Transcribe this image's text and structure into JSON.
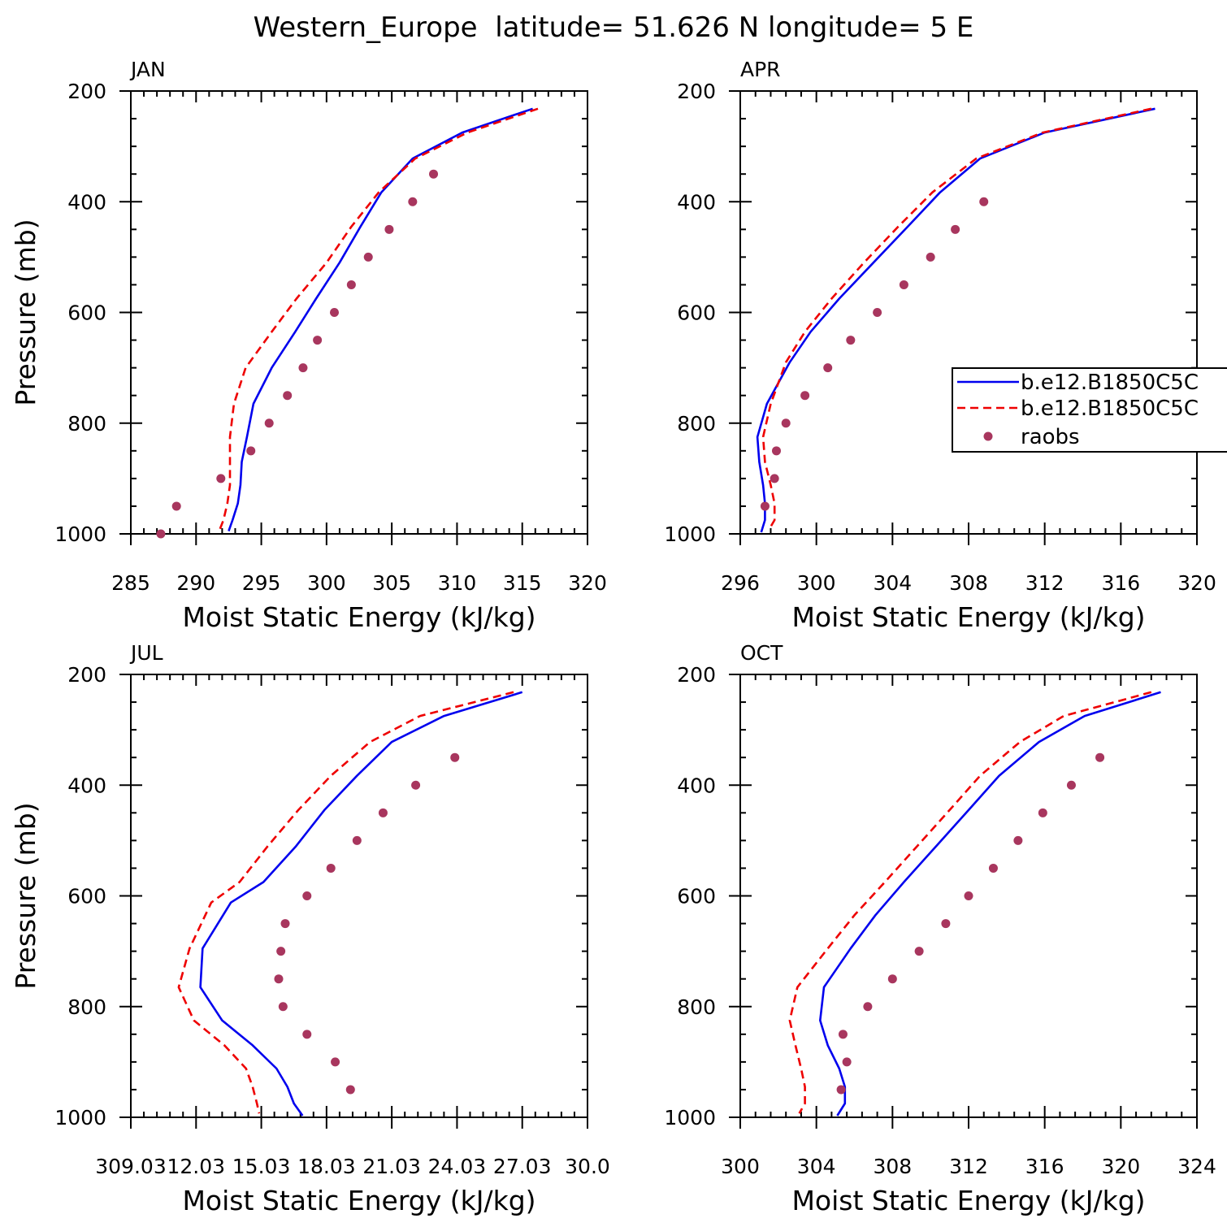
{
  "figure_title": "Western_Europe  latitude= 51.626 N longitude= 5 E",
  "colors": {
    "model1": "#0000ee",
    "model2": "#ee0000",
    "obs": "#a8365e"
  },
  "legend": {
    "entries": [
      {
        "label": "b.e12.B1850C5C",
        "style": "solid",
        "color": "#0000ee"
      },
      {
        "label": "b.e12.B1850C5C",
        "style": "dashed",
        "color": "#ee0000"
      },
      {
        "label": "raobs",
        "style": "dot",
        "color": "#a8365e"
      }
    ]
  },
  "chart_data": [
    {
      "type": "line",
      "panel_label": "JAN",
      "xlabel": "Moist Static Energy (kJ/kg)",
      "ylabel": "Pressure (mb)",
      "xlim": [
        285,
        320
      ],
      "ylim": [
        1000,
        200
      ],
      "xticks": [
        285,
        290,
        295,
        300,
        305,
        310,
        315,
        320
      ],
      "xtick_labels": [
        "285",
        "290",
        "295",
        "300",
        "305",
        "310",
        "315",
        "320"
      ],
      "yticks": [
        200,
        400,
        600,
        800,
        1000
      ],
      "ytick_labels": [
        "200",
        "400",
        "600",
        "800",
        "1000"
      ],
      "series": [
        {
          "name": "b.e12.B1850C5C (solid)",
          "style": "solid",
          "x": [
            315.8,
            310.4,
            306.6,
            304.2,
            302.6,
            301.0,
            299.2,
            297.6,
            295.8,
            294.4,
            293.9,
            293.5,
            293.4,
            293.2,
            292.8,
            292.5
          ],
          "y": [
            232,
            275,
            322,
            383,
            445,
            510,
            575,
            635,
            700,
            765,
            825,
            870,
            912,
            945,
            975,
            995
          ]
        },
        {
          "name": "b.e12.B1850C5C (dashed)",
          "style": "dashed",
          "x": [
            316.2,
            310.8,
            306.8,
            304.0,
            301.9,
            300.0,
            297.7,
            295.8,
            293.8,
            292.9,
            292.6,
            292.6,
            292.6,
            292.4,
            292.1,
            291.8
          ],
          "y": [
            232,
            275,
            322,
            383,
            445,
            510,
            575,
            635,
            700,
            765,
            825,
            870,
            912,
            945,
            975,
            993
          ]
        },
        {
          "name": "raobs",
          "style": "dot",
          "x": [
            308.2,
            306.6,
            304.8,
            303.2,
            301.9,
            300.6,
            299.3,
            298.2,
            297.0,
            295.6,
            294.2,
            291.9,
            288.5,
            287.3
          ],
          "y": [
            350,
            400,
            450,
            500,
            550,
            600,
            650,
            700,
            750,
            800,
            850,
            900,
            950,
            1000
          ]
        }
      ]
    },
    {
      "type": "line",
      "panel_label": "APR",
      "xlabel": "Moist Static Energy (kJ/kg)",
      "ylabel": "",
      "xlim": [
        296,
        320
      ],
      "ylim": [
        1000,
        200
      ],
      "xticks": [
        296,
        300,
        304,
        308,
        312,
        316,
        320
      ],
      "xtick_labels": [
        "296",
        "300",
        "304",
        "308",
        "312",
        "316",
        "320"
      ],
      "yticks": [
        200,
        400,
        600,
        800,
        1000
      ],
      "ytick_labels": [
        "200",
        "400",
        "600",
        "800",
        "1000"
      ],
      "series": [
        {
          "name": "b.e12.B1850C5C (solid)",
          "style": "solid",
          "x": [
            317.8,
            312.0,
            308.6,
            306.5,
            304.8,
            303.0,
            301.2,
            299.7,
            298.6,
            297.4,
            296.9,
            297.0,
            297.2,
            297.3,
            297.3,
            297.1
          ],
          "y": [
            232,
            275,
            322,
            383,
            445,
            510,
            575,
            635,
            690,
            765,
            825,
            870,
            912,
            945,
            975,
            997
          ]
        },
        {
          "name": "b.e12.B1850C5C (dashed)",
          "style": "dashed",
          "x": [
            317.6,
            311.9,
            308.4,
            306.1,
            304.3,
            302.5,
            300.8,
            299.4,
            298.4,
            297.6,
            297.2,
            297.3,
            297.6,
            297.8,
            297.8,
            297.5
          ],
          "y": [
            232,
            275,
            322,
            383,
            445,
            510,
            575,
            635,
            690,
            765,
            825,
            870,
            912,
            945,
            975,
            993
          ]
        },
        {
          "name": "raobs",
          "style": "dot",
          "x": [
            308.8,
            307.3,
            306.0,
            304.6,
            303.2,
            301.8,
            300.6,
            299.4,
            298.4,
            297.9,
            297.8,
            297.3
          ],
          "y": [
            400,
            450,
            500,
            550,
            600,
            650,
            700,
            750,
            800,
            850,
            900,
            950
          ]
        }
      ]
    },
    {
      "type": "line",
      "panel_label": "JUL",
      "xlabel": "Moist Static Energy (kJ/kg)",
      "ylabel": "Pressure (mb)",
      "xlim": [
        309.0,
        330.0
      ],
      "ylim": [
        1000,
        200
      ],
      "xticks": [
        309.0,
        312.0,
        315.0,
        318.0,
        321.0,
        324.0,
        327.0,
        330.0
      ],
      "xtick_labels": [
        "309.03",
        "12.03",
        "15.03",
        "18.03",
        "21.03",
        "24.03",
        "27.03",
        "30.0"
      ],
      "yticks": [
        200,
        400,
        600,
        800,
        1000
      ],
      "ytick_labels": [
        "200",
        "400",
        "600",
        "800",
        "1000"
      ],
      "series": [
        {
          "name": "b.e12.B1850C5C (solid)",
          "style": "solid",
          "x": [
            327.0,
            323.4,
            321.0,
            319.4,
            317.9,
            316.6,
            315.1,
            313.6,
            312.3,
            312.2,
            313.2,
            314.6,
            315.7,
            316.2,
            316.5,
            316.9
          ],
          "y": [
            232,
            275,
            322,
            383,
            445,
            510,
            575,
            612,
            695,
            765,
            825,
            870,
            912,
            945,
            975,
            997
          ]
        },
        {
          "name": "b.e12.B1850C5C (dashed)",
          "style": "dashed",
          "x": [
            326.6,
            322.3,
            320.0,
            318.2,
            316.7,
            315.3,
            314.0,
            312.7,
            311.7,
            311.2,
            311.9,
            313.3,
            314.3,
            314.6,
            314.8,
            314.9
          ],
          "y": [
            232,
            275,
            322,
            383,
            445,
            510,
            575,
            612,
            695,
            765,
            825,
            870,
            912,
            945,
            975,
            993
          ]
        },
        {
          "name": "raobs",
          "style": "dot",
          "x": [
            323.9,
            322.1,
            320.6,
            319.4,
            318.2,
            317.1,
            316.1,
            315.9,
            315.8,
            316.0,
            317.1,
            318.4,
            319.1
          ],
          "y": [
            350,
            400,
            450,
            500,
            550,
            600,
            650,
            700,
            750,
            800,
            850,
            900,
            950
          ]
        }
      ]
    },
    {
      "type": "line",
      "panel_label": "OCT",
      "xlabel": "Moist Static Energy (kJ/kg)",
      "ylabel": "",
      "xlim": [
        300,
        324
      ],
      "ylim": [
        1000,
        200
      ],
      "xticks": [
        300,
        304,
        308,
        312,
        316,
        320,
        324
      ],
      "xtick_labels": [
        "300",
        "304",
        "308",
        "312",
        "316",
        "320",
        "324"
      ],
      "yticks": [
        200,
        400,
        600,
        800,
        1000
      ],
      "ytick_labels": [
        "200",
        "400",
        "600",
        "800",
        "1000"
      ],
      "series": [
        {
          "name": "b.e12.B1850C5C (solid)",
          "style": "solid",
          "x": [
            322.1,
            318.1,
            315.7,
            313.6,
            312.0,
            310.3,
            308.6,
            307.1,
            305.8,
            304.4,
            304.2,
            304.6,
            305.2,
            305.5,
            305.5,
            305.1
          ],
          "y": [
            232,
            275,
            322,
            383,
            445,
            510,
            575,
            635,
            695,
            765,
            825,
            870,
            912,
            945,
            975,
            997
          ]
        },
        {
          "name": "b.e12.B1850C5C (dashed)",
          "style": "dashed",
          "x": [
            321.6,
            317.0,
            314.7,
            312.6,
            311.0,
            309.3,
            307.6,
            306.0,
            304.6,
            303.0,
            302.6,
            302.9,
            303.2,
            303.4,
            303.4,
            303.1
          ],
          "y": [
            232,
            275,
            322,
            383,
            445,
            510,
            575,
            635,
            695,
            765,
            825,
            870,
            912,
            945,
            975,
            993
          ]
        },
        {
          "name": "raobs",
          "style": "dot",
          "x": [
            318.9,
            317.4,
            315.9,
            314.6,
            313.3,
            312.0,
            310.8,
            309.4,
            308.0,
            306.7,
            305.4,
            305.6,
            305.3
          ],
          "y": [
            350,
            400,
            450,
            500,
            550,
            600,
            650,
            700,
            750,
            800,
            850,
            900,
            950
          ]
        }
      ]
    }
  ]
}
